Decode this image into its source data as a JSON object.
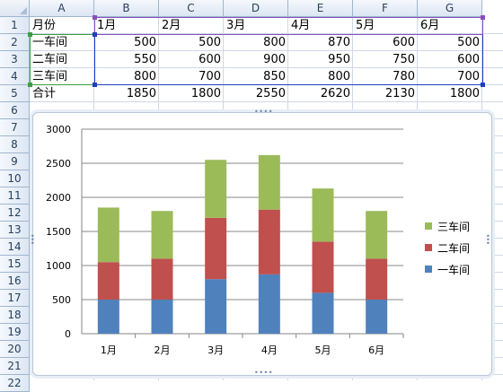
{
  "columns": [
    "A",
    "B",
    "C",
    "D",
    "E",
    "F",
    "G"
  ],
  "rows": [
    "1",
    "2",
    "3",
    "4",
    "5",
    "6",
    "7",
    "8",
    "9",
    "10",
    "11",
    "12",
    "13",
    "14",
    "15",
    "16",
    "17",
    "18",
    "19",
    "20",
    "21",
    "22"
  ],
  "table": {
    "header": [
      "月份",
      "1月",
      "2月",
      "3月",
      "4月",
      "5月",
      "6月"
    ],
    "rows": [
      [
        "一车间",
        "500",
        "500",
        "800",
        "870",
        "600",
        "500"
      ],
      [
        "二车间",
        "550",
        "600",
        "900",
        "950",
        "750",
        "600"
      ],
      [
        "三车间",
        "800",
        "700",
        "850",
        "800",
        "780",
        "700"
      ],
      [
        "合计",
        "1850",
        "1800",
        "2550",
        "2620",
        "2130",
        "1800"
      ]
    ]
  },
  "chart_data": {
    "type": "bar",
    "stacked": true,
    "categories": [
      "1月",
      "2月",
      "3月",
      "4月",
      "5月",
      "6月"
    ],
    "series": [
      {
        "name": "一车间",
        "values": [
          500,
          500,
          800,
          870,
          600,
          500
        ],
        "color": "#4f81bd"
      },
      {
        "name": "二车间",
        "values": [
          550,
          600,
          900,
          950,
          750,
          600
        ],
        "color": "#c0504d"
      },
      {
        "name": "三车间",
        "values": [
          800,
          700,
          850,
          800,
          780,
          700
        ],
        "color": "#9bbb59"
      }
    ],
    "ylim": [
      0,
      3000
    ],
    "yticks": [
      "0",
      "500",
      "1000",
      "1500",
      "2000",
      "2500",
      "3000"
    ],
    "grid": true,
    "legend_position": "right"
  }
}
